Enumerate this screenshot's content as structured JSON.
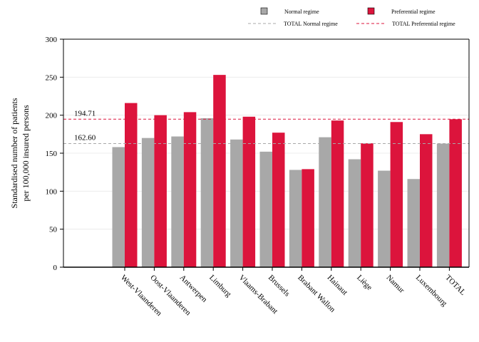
{
  "chart_data": {
    "type": "bar",
    "categories": [
      "West-Vlaanderen",
      "Oost-Vlaanderen",
      "Antwerpen",
      "Limburg",
      "Vlaams-Brabant",
      "Brussels",
      "Brabant Wallon",
      "Hainaut",
      "Liège",
      "Namur",
      "Luxembourg",
      "TOTAL"
    ],
    "series": [
      {
        "name": "Normal regime",
        "color": "#a8a8a8",
        "values": [
          158,
          170,
          172,
          196,
          168,
          152,
          128,
          171,
          142,
          127,
          116,
          162.6
        ]
      },
      {
        "name": "Preferential regime",
        "color": "#dc143c",
        "values": [
          216,
          200,
          204,
          253,
          198,
          177,
          129,
          193,
          163,
          191,
          175,
          194.71
        ]
      }
    ],
    "reference_lines": [
      {
        "name": "TOTAL Normal regime",
        "value": 162.6,
        "label": "162.60",
        "color": "#a8a8a8",
        "style": "dashed"
      },
      {
        "name": "TOTAL Preferential regime",
        "value": 194.71,
        "label": "194.71",
        "color": "#dc143c",
        "style": "dashed"
      }
    ],
    "ylabel_lines": [
      "Standardised number of patients",
      "per 100,000 insured persons"
    ],
    "xlabel": "",
    "title": "",
    "ylim": [
      0,
      300
    ],
    "yticks": [
      0,
      50,
      100,
      150,
      200,
      250,
      300
    ],
    "grid": true,
    "legend_position": "top-right"
  }
}
